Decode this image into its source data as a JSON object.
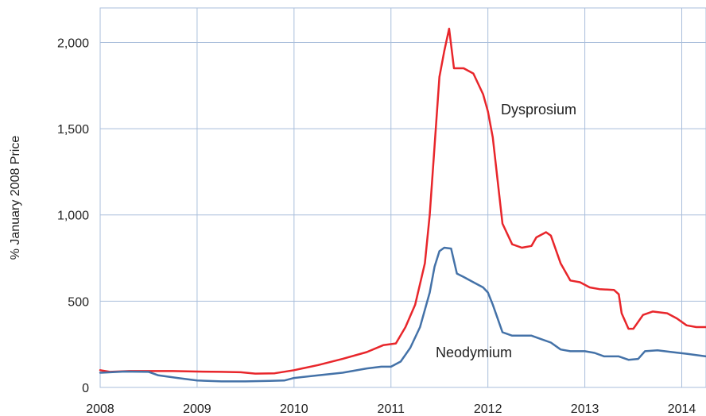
{
  "chart_data": {
    "type": "line",
    "title": "",
    "xlabel": "",
    "ylabel": "% January 2008 Price",
    "xlim": [
      2008,
      2014.25
    ],
    "ylim": [
      0,
      2200
    ],
    "x_ticks": [
      2008,
      2009,
      2010,
      2011,
      2012,
      2013,
      2014
    ],
    "x_tick_labels": [
      "2008",
      "2009",
      "2010",
      "2011",
      "2012",
      "2013",
      "2014"
    ],
    "y_ticks": [
      0,
      500,
      1000,
      1500,
      2000
    ],
    "y_tick_labels": [
      "0",
      "500",
      "1,000",
      "1,500",
      "2,000"
    ],
    "grid": true,
    "legend": "none (series labelled directly on chart)",
    "series": [
      {
        "name": "Dysprosium",
        "color": "#e8262b",
        "points": [
          [
            2008.0,
            100
          ],
          [
            2008.1,
            90
          ],
          [
            2008.3,
            95
          ],
          [
            2008.5,
            95
          ],
          [
            2008.75,
            95
          ],
          [
            2009.0,
            92
          ],
          [
            2009.25,
            90
          ],
          [
            2009.45,
            88
          ],
          [
            2009.6,
            80
          ],
          [
            2009.8,
            82
          ],
          [
            2010.0,
            100
          ],
          [
            2010.25,
            130
          ],
          [
            2010.5,
            165
          ],
          [
            2010.75,
            205
          ],
          [
            2010.92,
            245
          ],
          [
            2011.05,
            255
          ],
          [
            2011.15,
            350
          ],
          [
            2011.25,
            480
          ],
          [
            2011.35,
            720
          ],
          [
            2011.4,
            1000
          ],
          [
            2011.45,
            1400
          ],
          [
            2011.5,
            1800
          ],
          [
            2011.55,
            1950
          ],
          [
            2011.6,
            2080
          ],
          [
            2011.65,
            1850
          ],
          [
            2011.75,
            1850
          ],
          [
            2011.85,
            1820
          ],
          [
            2011.95,
            1700
          ],
          [
            2012.0,
            1600
          ],
          [
            2012.05,
            1450
          ],
          [
            2012.1,
            1200
          ],
          [
            2012.15,
            950
          ],
          [
            2012.25,
            830
          ],
          [
            2012.35,
            810
          ],
          [
            2012.45,
            820
          ],
          [
            2012.5,
            870
          ],
          [
            2012.6,
            900
          ],
          [
            2012.65,
            880
          ],
          [
            2012.75,
            720
          ],
          [
            2012.85,
            620
          ],
          [
            2012.95,
            610
          ],
          [
            2013.05,
            580
          ],
          [
            2013.15,
            570
          ],
          [
            2013.3,
            565
          ],
          [
            2013.35,
            540
          ],
          [
            2013.38,
            430
          ],
          [
            2013.45,
            340
          ],
          [
            2013.5,
            340
          ],
          [
            2013.6,
            420
          ],
          [
            2013.7,
            440
          ],
          [
            2013.85,
            430
          ],
          [
            2013.95,
            400
          ],
          [
            2014.05,
            360
          ],
          [
            2014.15,
            350
          ],
          [
            2014.25,
            350
          ]
        ]
      },
      {
        "name": "Neodymium",
        "color": "#4472a8",
        "points": [
          [
            2008.0,
            85
          ],
          [
            2008.25,
            92
          ],
          [
            2008.5,
            90
          ],
          [
            2008.6,
            70
          ],
          [
            2008.8,
            55
          ],
          [
            2009.0,
            40
          ],
          [
            2009.25,
            35
          ],
          [
            2009.5,
            35
          ],
          [
            2009.75,
            38
          ],
          [
            2009.9,
            40
          ],
          [
            2010.0,
            55
          ],
          [
            2010.25,
            70
          ],
          [
            2010.5,
            85
          ],
          [
            2010.75,
            110
          ],
          [
            2010.9,
            120
          ],
          [
            2011.0,
            120
          ],
          [
            2011.1,
            150
          ],
          [
            2011.2,
            230
          ],
          [
            2011.3,
            350
          ],
          [
            2011.4,
            550
          ],
          [
            2011.45,
            700
          ],
          [
            2011.5,
            790
          ],
          [
            2011.55,
            810
          ],
          [
            2011.62,
            805
          ],
          [
            2011.68,
            660
          ],
          [
            2011.75,
            640
          ],
          [
            2011.85,
            610
          ],
          [
            2011.95,
            580
          ],
          [
            2012.0,
            550
          ],
          [
            2012.05,
            480
          ],
          [
            2012.1,
            400
          ],
          [
            2012.15,
            320
          ],
          [
            2012.25,
            300
          ],
          [
            2012.35,
            300
          ],
          [
            2012.45,
            300
          ],
          [
            2012.55,
            280
          ],
          [
            2012.65,
            260
          ],
          [
            2012.75,
            220
          ],
          [
            2012.85,
            210
          ],
          [
            2013.0,
            210
          ],
          [
            2013.1,
            200
          ],
          [
            2013.2,
            180
          ],
          [
            2013.35,
            180
          ],
          [
            2013.45,
            160
          ],
          [
            2013.55,
            165
          ],
          [
            2013.62,
            210
          ],
          [
            2013.75,
            215
          ],
          [
            2013.9,
            205
          ],
          [
            2014.05,
            195
          ],
          [
            2014.25,
            180
          ]
        ]
      }
    ]
  }
}
